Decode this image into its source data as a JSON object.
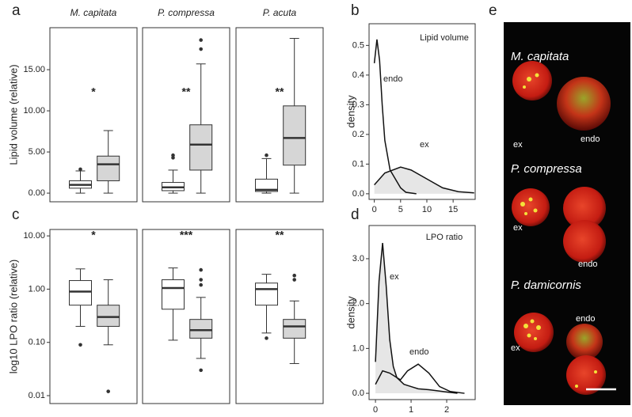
{
  "chart_data": [
    {
      "type": "box",
      "panel_label": "a",
      "ylabel": "Lipid volume (relative)",
      "ylim": [
        -1.05,
        20.1
      ],
      "yticks": [
        {
          "value": 0,
          "label": "0.00"
        },
        {
          "value": 5,
          "label": "5.00"
        },
        {
          "value": 10,
          "label": "10.00"
        },
        {
          "value": 15,
          "label": "15.00"
        }
      ],
      "colors": [
        "#ffffff",
        "#d6d6d6"
      ],
      "facets": [
        {
          "title": "M. capitata",
          "annotation": "*",
          "boxes": [
            {
              "min": 0,
              "q1": 0.6,
              "median": 1.0,
              "q3": 1.5,
              "max": 2.7,
              "outliers": [
                2.9
              ]
            },
            {
              "min": 0,
              "q1": 1.5,
              "median": 3.5,
              "q3": 4.5,
              "max": 7.6,
              "outliers": []
            }
          ]
        },
        {
          "title": "P. compressa",
          "annotation": "**",
          "boxes": [
            {
              "min": 0,
              "q1": 0.3,
              "median": 0.7,
              "q3": 1.3,
              "max": 2.8,
              "outliers": [
                4.3,
                4.6
              ]
            },
            {
              "min": 0,
              "q1": 2.8,
              "median": 5.9,
              "q3": 8.3,
              "max": 15.7,
              "outliers": [
                17.5,
                18.6
              ]
            }
          ]
        },
        {
          "title": "P. acuta",
          "annotation": "**",
          "boxes": [
            {
              "min": 0,
              "q1": 0.2,
              "median": 0.4,
              "q3": 1.7,
              "max": 4.2,
              "outliers": [
                4.6
              ]
            },
            {
              "min": 0,
              "q1": 3.4,
              "median": 6.7,
              "q3": 10.6,
              "max": 18.8,
              "outliers": []
            }
          ]
        }
      ]
    },
    {
      "type": "density",
      "panel_label": "b",
      "title": "Lipid volume",
      "ylabel": "density",
      "xlim": [
        -1,
        19.2
      ],
      "xticks": [
        0,
        5,
        10,
        15
      ],
      "ylim": [
        -0.019,
        0.573
      ],
      "yticks": [
        {
          "value": 0,
          "label": "0.0"
        },
        0.1,
        0.2,
        0.3,
        0.4,
        0.5
      ],
      "series": [
        {
          "name": "endo",
          "color": "#111111",
          "fill": null,
          "x": [
            0,
            0.5,
            1,
            1.5,
            2,
            3,
            4,
            5,
            6,
            8
          ],
          "values": [
            0.44,
            0.52,
            0.45,
            0.3,
            0.18,
            0.08,
            0.05,
            0.02,
            0.005,
            0
          ]
        },
        {
          "name": "ex",
          "color": "#111111",
          "fill": "#e6e6e6",
          "x": [
            0,
            2,
            5,
            7,
            10,
            13,
            16,
            19
          ],
          "values": [
            0.03,
            0.07,
            0.09,
            0.08,
            0.05,
            0.02,
            0.007,
            0.003
          ]
        }
      ]
    },
    {
      "type": "box",
      "panel_label": "c",
      "ylabel": "log10 LPO ratio (relative)",
      "log_y": true,
      "ylim": [
        0.0071,
        13.2
      ],
      "yticks": [
        {
          "value": 0.01,
          "label": "0.01"
        },
        {
          "value": 0.1,
          "label": "0.10"
        },
        {
          "value": 1,
          "label": "1.00"
        },
        {
          "value": 10,
          "label": "10.00"
        }
      ],
      "colors": [
        "#ffffff",
        "#d6d6d6"
      ],
      "facets": [
        {
          "annotation": "*",
          "boxes": [
            {
              "min": 0.2,
              "q1": 0.5,
              "median": 0.9,
              "q3": 1.45,
              "max": 2.4,
              "outliers": [
                0.09
              ]
            },
            {
              "min": 0.09,
              "q1": 0.2,
              "median": 0.3,
              "q3": 0.5,
              "max": 1.5,
              "outliers": [
                0.012
              ]
            }
          ]
        },
        {
          "annotation": "***",
          "boxes": [
            {
              "min": 0.11,
              "q1": 0.42,
              "median": 1.05,
              "q3": 1.5,
              "max": 2.5,
              "outliers": []
            },
            {
              "min": 0.05,
              "q1": 0.12,
              "median": 0.17,
              "q3": 0.27,
              "max": 0.7,
              "outliers": [
                0.03,
                1.2,
                1.5,
                2.3
              ]
            }
          ]
        },
        {
          "annotation": "**",
          "boxes": [
            {
              "min": 0.15,
              "q1": 0.5,
              "median": 1.0,
              "q3": 1.3,
              "max": 1.9,
              "outliers": [
                0.12
              ]
            },
            {
              "min": 0.04,
              "q1": 0.12,
              "median": 0.2,
              "q3": 0.27,
              "max": 0.6,
              "outliers": [
                1.5,
                1.8
              ]
            }
          ]
        }
      ]
    },
    {
      "type": "density",
      "panel_label": "d",
      "title": "LPO ratio",
      "ylabel": "density",
      "xlim": [
        -0.18,
        2.8
      ],
      "xticks": [
        0,
        1,
        2
      ],
      "ylim": [
        -0.14,
        3.74
      ],
      "yticks": [
        {
          "value": 0,
          "label": "0.0"
        },
        {
          "value": 1,
          "label": "1.0"
        },
        {
          "value": 2,
          "label": "2.0"
        },
        {
          "value": 3,
          "label": "3.0"
        }
      ],
      "series": [
        {
          "name": "ex",
          "color": "#111111",
          "fill": "#e6e6e6",
          "x": [
            0,
            0.1,
            0.2,
            0.3,
            0.4,
            0.5,
            0.6,
            0.8,
            1.0,
            1.2,
            1.5,
            2.0,
            2.3
          ],
          "values": [
            0.7,
            2.5,
            3.35,
            2.4,
            1.2,
            0.6,
            0.35,
            0.2,
            0.15,
            0.1,
            0.08,
            0.03,
            0
          ]
        },
        {
          "name": "endo",
          "color": "#111111",
          "fill": null,
          "x": [
            0,
            0.2,
            0.4,
            0.7,
            0.9,
            1.2,
            1.5,
            1.8,
            2.1,
            2.5
          ],
          "values": [
            0.2,
            0.5,
            0.45,
            0.3,
            0.5,
            0.65,
            0.45,
            0.15,
            0.04,
            0
          ]
        }
      ]
    }
  ],
  "image_panel": {
    "panel_label": "e",
    "groups": [
      {
        "title": "M. capitata",
        "labels": [
          "ex",
          "endo"
        ]
      },
      {
        "title": "P. compressa",
        "labels": [
          "ex",
          "endo"
        ]
      },
      {
        "title": "P. damicornis",
        "labels": [
          "ex",
          "endo"
        ]
      }
    ]
  }
}
